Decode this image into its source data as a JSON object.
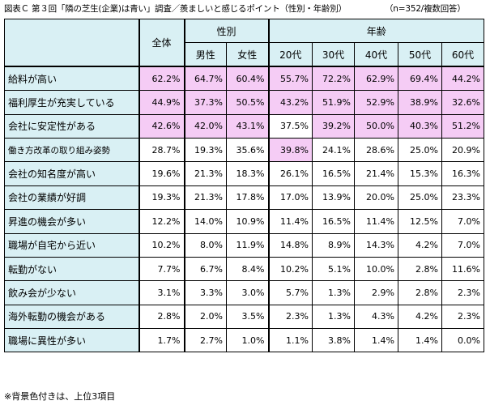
{
  "title": "図表Ｃ 第３回「隣の芝生(企業)は青い」調査／羨ましいと感じるポイント（性別・年齢別）",
  "note": "（n=352/複数回答）",
  "headers": {
    "total": "全体",
    "gender": "性別",
    "age": "年齢",
    "male": "男性",
    "female": "女性",
    "ages": [
      "20代",
      "30代",
      "40代",
      "50代",
      "60代"
    ]
  },
  "rows": [
    {
      "label": "給料が高い",
      "values": [
        "62.2%",
        "64.7%",
        "60.4%",
        "55.7%",
        "72.2%",
        "62.9%",
        "69.4%",
        "44.2%"
      ],
      "hi": [
        1,
        1,
        1,
        1,
        1,
        1,
        1,
        1
      ]
    },
    {
      "label": "福利厚生が充実している",
      "values": [
        "44.9%",
        "37.3%",
        "50.5%",
        "43.2%",
        "51.9%",
        "52.9%",
        "38.9%",
        "32.6%"
      ],
      "hi": [
        1,
        1,
        1,
        1,
        1,
        1,
        1,
        1
      ]
    },
    {
      "label": "会社に安定性がある",
      "values": [
        "42.6%",
        "42.0%",
        "43.1%",
        "37.5%",
        "39.2%",
        "50.0%",
        "40.3%",
        "51.2%"
      ],
      "hi": [
        1,
        1,
        1,
        0,
        1,
        1,
        1,
        1
      ]
    },
    {
      "label": "働き方改革の取り組み姿勢",
      "values": [
        "28.7%",
        "19.3%",
        "35.6%",
        "39.8%",
        "24.1%",
        "28.6%",
        "25.0%",
        "20.9%"
      ],
      "hi": [
        0,
        0,
        0,
        1,
        0,
        0,
        0,
        0
      ]
    },
    {
      "label": "会社の知名度が高い",
      "values": [
        "19.6%",
        "21.3%",
        "18.3%",
        "26.1%",
        "16.5%",
        "21.4%",
        "15.3%",
        "16.3%"
      ],
      "hi": [
        0,
        0,
        0,
        0,
        0,
        0,
        0,
        0
      ]
    },
    {
      "label": "会社の業績が好調",
      "values": [
        "19.3%",
        "21.3%",
        "17.8%",
        "17.0%",
        "13.9%",
        "20.0%",
        "25.0%",
        "23.3%"
      ],
      "hi": [
        0,
        0,
        0,
        0,
        0,
        0,
        0,
        0
      ]
    },
    {
      "label": "昇進の機会が多い",
      "values": [
        "12.2%",
        "14.0%",
        "10.9%",
        "11.4%",
        "16.5%",
        "11.4%",
        "12.5%",
        "7.0%"
      ],
      "hi": [
        0,
        0,
        0,
        0,
        0,
        0,
        0,
        0
      ]
    },
    {
      "label": "職場が自宅から近い",
      "values": [
        "10.2%",
        "8.0%",
        "11.9%",
        "14.8%",
        "8.9%",
        "14.3%",
        "4.2%",
        "7.0%"
      ],
      "hi": [
        0,
        0,
        0,
        0,
        0,
        0,
        0,
        0
      ]
    },
    {
      "label": "転勤がない",
      "values": [
        "7.7%",
        "6.7%",
        "8.4%",
        "10.2%",
        "5.1%",
        "10.0%",
        "2.8%",
        "11.6%"
      ],
      "hi": [
        0,
        0,
        0,
        0,
        0,
        0,
        0,
        0
      ]
    },
    {
      "label": "飲み会が少ない",
      "values": [
        "3.1%",
        "3.3%",
        "3.0%",
        "5.7%",
        "1.3%",
        "2.9%",
        "2.8%",
        "2.3%"
      ],
      "hi": [
        0,
        0,
        0,
        0,
        0,
        0,
        0,
        0
      ]
    },
    {
      "label": "海外転勤の機会がある",
      "values": [
        "2.8%",
        "2.0%",
        "3.5%",
        "2.3%",
        "1.3%",
        "4.3%",
        "4.2%",
        "2.3%"
      ],
      "hi": [
        0,
        0,
        0,
        0,
        0,
        0,
        0,
        0
      ]
    },
    {
      "label": "職場に異性が多い",
      "values": [
        "1.7%",
        "2.7%",
        "1.0%",
        "1.1%",
        "3.8%",
        "1.4%",
        "1.4%",
        "0.0%"
      ],
      "hi": [
        0,
        0,
        0,
        0,
        0,
        0,
        0,
        0
      ]
    }
  ],
  "footnote": "※背景色付きは、上位3項目"
}
